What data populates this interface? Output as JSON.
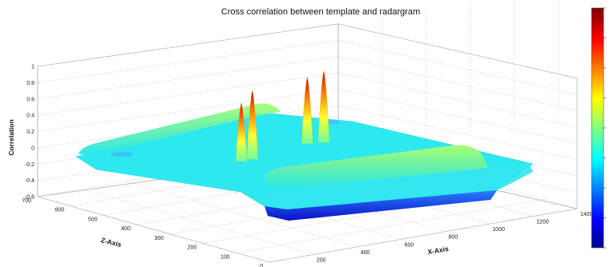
{
  "chart_data": {
    "type": "surface",
    "title": "Cross correlation between template and radargram",
    "xlabel": "X-Axis",
    "zlabel": "Z-Axis",
    "ylabel": "Correlation",
    "x_ticks": [
      "200",
      "400",
      "600",
      "800",
      "1000",
      "1200",
      "1400"
    ],
    "z_ticks": [
      "0",
      "100",
      "200",
      "300",
      "400",
      "500",
      "600",
      "700"
    ],
    "y_ticks": [
      "1",
      "0.8",
      "0.6",
      "0.4",
      "0.2",
      "0",
      "-0.2",
      "-0.4",
      "-0.6"
    ],
    "xlim": [
      0,
      1400
    ],
    "zlim": [
      0,
      700
    ],
    "ylim": [
      -0.6,
      1
    ],
    "colormap": "jet",
    "colorbar": "right",
    "grid": true,
    "surface": {
      "baseline_correlation": -0.1,
      "slab_edge_correlation": -0.65,
      "ridges": [
        {
          "from": [
            250,
            560
          ],
          "to": [
            900,
            560
          ],
          "correlation": 0.0
        },
        {
          "from": [
            650,
            190
          ],
          "to": [
            1350,
            190
          ],
          "correlation": 0.0
        }
      ],
      "peaks": [
        {
          "x": 520,
          "z": 430,
          "correlation": 0.62
        },
        {
          "x": 570,
          "z": 430,
          "correlation": 0.75
        },
        {
          "x": 880,
          "z": 470,
          "correlation": 0.72
        },
        {
          "x": 940,
          "z": 460,
          "correlation": 0.78
        }
      ]
    }
  }
}
